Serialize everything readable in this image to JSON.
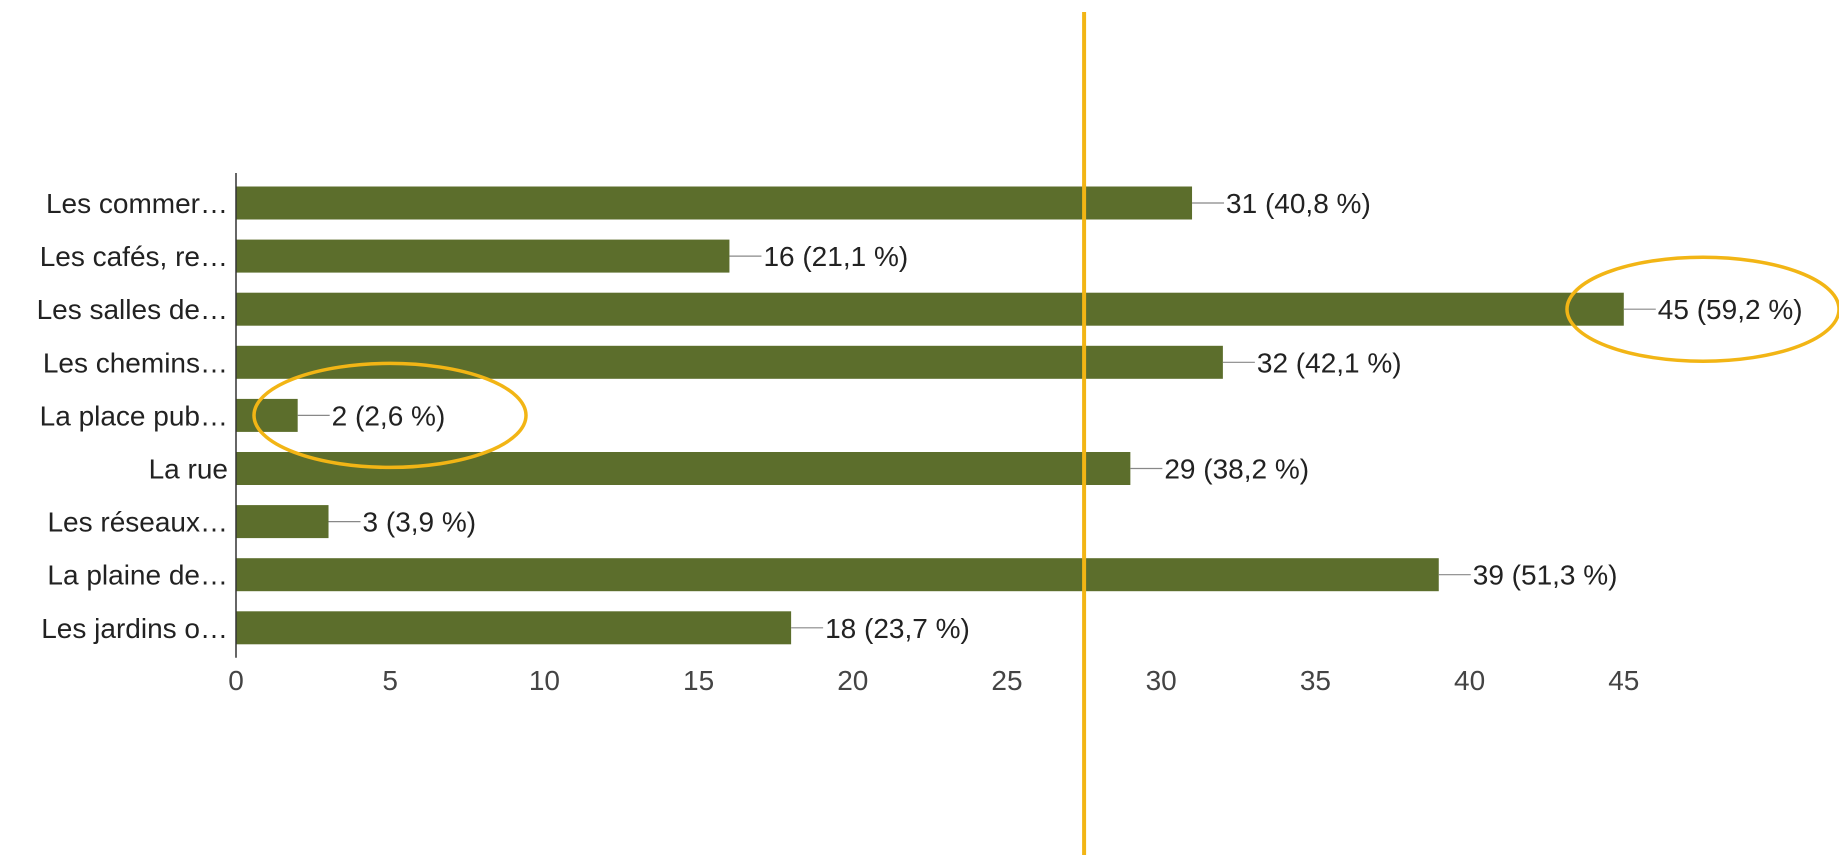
{
  "chart_data": {
    "type": "bar",
    "orientation": "horizontal",
    "categories": [
      "Les commer…",
      "Les cafés, re…",
      "Les salles de…",
      "Les chemins…",
      "La place pub…",
      "La rue",
      "Les réseaux…",
      "La plaine de…",
      "Les jardins o…"
    ],
    "values": [
      31,
      16,
      45,
      32,
      2,
      29,
      3,
      39,
      18
    ],
    "data_labels": [
      "31 (40,8 %)",
      "16 (21,1 %)",
      "45 (59,2 %)",
      "32 (42,1 %)",
      "2 (2,6 %)",
      "29 (38,2 %)",
      "3 (3,9 %)",
      "39 (51,3 %)",
      "18 (23,7 %)"
    ],
    "xticks": [
      "0",
      "5",
      "10",
      "15",
      "20",
      "25",
      "30",
      "35",
      "40",
      "45"
    ],
    "xlim": [
      0,
      45
    ],
    "grid": false,
    "title": "",
    "xlabel": "",
    "ylabel": "",
    "bar_color": "#5c6e2c",
    "annotations": {
      "vertical_line_value": 27.5,
      "vertical_line_color": "#f2b515",
      "circled_categories": [
        "Les salles de…",
        "La place pub…"
      ],
      "circle_color": "#f2b515"
    }
  }
}
